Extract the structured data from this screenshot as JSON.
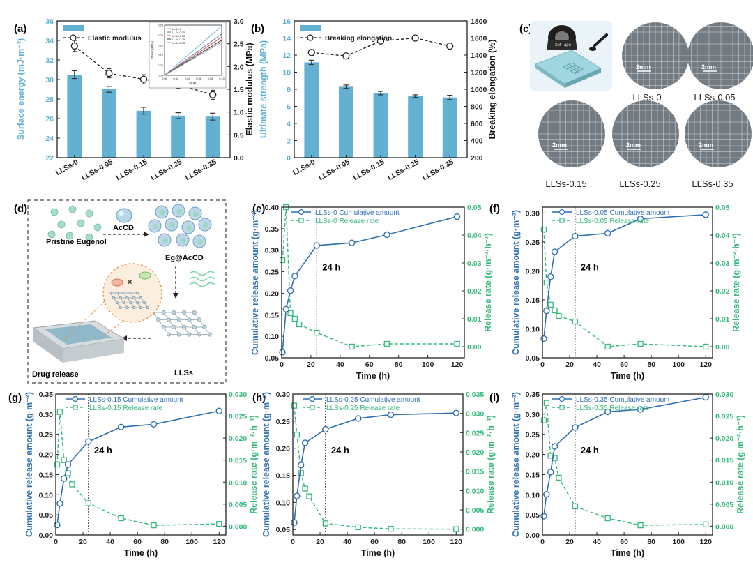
{
  "colors": {
    "bar": "#62b1d3",
    "cum": "#2f6fb3",
    "rate": "#33b97a",
    "black": "#222222",
    "photo": "#727b82",
    "dash_box": "#444444"
  },
  "panels": {
    "a": {
      "label": "(a)"
    },
    "b": {
      "label": "(b)"
    },
    "c": {
      "label": "(c)"
    },
    "d": {
      "label": "(d)"
    },
    "e": {
      "label": "(e)"
    },
    "f": {
      "label": "(f)"
    },
    "g": {
      "label": "(g)"
    },
    "h": {
      "label": "(h)"
    },
    "i": {
      "label": "(i)"
    }
  },
  "photos": {
    "labels": [
      "LLSs-0",
      "LLSs-0.05",
      "LLSs-0.15",
      "LLSs-0.25",
      "LLSs-0.35"
    ],
    "scale_text": "2mm",
    "tape_text": "3M Tape"
  },
  "schematic": {
    "pristine": "Pristine Eugenol",
    "acd": "AcCD",
    "complex": "Eg@AcCD",
    "llss": "LLSs",
    "release": "Drug release",
    "cross": "×"
  },
  "chart_data": [
    {
      "id": "a",
      "type": "bar",
      "categories": [
        "LLSs-0",
        "LLSs-0.05",
        "LLSs-0.15",
        "LLSs-0.25",
        "LLSs-0.35"
      ],
      "series": [
        {
          "name": "Surface energy",
          "kind": "bar",
          "axis": "left",
          "values": [
            30.5,
            29.0,
            26.8,
            26.3,
            26.2
          ],
          "errors": [
            0.4,
            0.3,
            0.35,
            0.3,
            0.35
          ]
        },
        {
          "name": "Elastic modulus",
          "kind": "line",
          "axis": "right",
          "values": [
            2.45,
            1.85,
            1.72,
            1.6,
            1.38
          ],
          "errors": [
            0.12,
            0.1,
            0.1,
            0.08,
            0.1
          ]
        }
      ],
      "ylabel": "Surface energy (mJ·m⁻²)",
      "ylim": [
        22,
        36
      ],
      "yticks": [
        22,
        24,
        26,
        28,
        30,
        32,
        34,
        36
      ],
      "y2label": "Elastic modulus (MPa)",
      "y2lim": [
        0,
        3.0
      ],
      "y2ticks": [
        "0.0",
        "0.5",
        "1.0",
        "1.5",
        "2.0",
        "2.5",
        "3.0"
      ],
      "legend": "top-left",
      "inset": {
        "type": "line",
        "xlabel": "Strain",
        "ylabel": "Stress (MPa)",
        "xticks": [
          "0.00",
          "0.02",
          "0.04",
          "0.06",
          "0.08",
          "0.10"
        ],
        "yticks": [
          "0.00",
          "0.05",
          "0.10",
          "0.15",
          "0.20",
          "0.25"
        ],
        "xlim": [
          0,
          0.1
        ],
        "ylim": [
          0,
          0.25
        ],
        "series": [
          {
            "name": "LLSs-0",
            "x": [
              0,
              0.1
            ],
            "y": [
              0,
              0.245
            ],
            "color": "#6fb7d8"
          },
          {
            "name": "LLSs-0.05",
            "x": [
              0,
              0.1
            ],
            "y": [
              0,
              0.205
            ],
            "color": "#6a7fb0"
          },
          {
            "name": "LLSs-0.15",
            "x": [
              0,
              0.1
            ],
            "y": [
              0,
              0.19
            ],
            "color": "#c65a4f"
          },
          {
            "name": "LLSs-0.25",
            "x": [
              0,
              0.1
            ],
            "y": [
              0,
              0.175
            ],
            "color": "#3a3a3a"
          },
          {
            "name": "LLSs-0.35",
            "x": [
              0,
              0.1
            ],
            "y": [
              0,
              0.165
            ],
            "color": "#a0a0a0"
          }
        ]
      }
    },
    {
      "id": "b",
      "type": "bar",
      "categories": [
        "LLSs-0",
        "LLSs-0.05",
        "LLSs-0.15",
        "LLSs-0.25",
        "LLSs-0.35"
      ],
      "series": [
        {
          "name": "Ultimate strength",
          "kind": "bar",
          "axis": "left",
          "values": [
            11.15,
            8.3,
            7.55,
            7.2,
            7.05
          ],
          "errors": [
            0.25,
            0.2,
            0.2,
            0.15,
            0.25
          ]
        },
        {
          "name": "Breaking elongation",
          "kind": "line",
          "axis": "right",
          "values": [
            1430,
            1390,
            1565,
            1600,
            1505
          ],
          "errors": [
            35,
            20,
            20,
            30,
            30
          ]
        }
      ],
      "ylabel": "Ultimate strength (MPa)",
      "ylim": [
        0,
        16
      ],
      "yticks": [
        0,
        2,
        4,
        6,
        8,
        10,
        12,
        14,
        16
      ],
      "y2label": "Breaking elongation (%)",
      "y2lim": [
        200,
        1800
      ],
      "y2ticks": [
        200,
        400,
        600,
        800,
        1000,
        1200,
        1400,
        1600,
        1800
      ],
      "legend": "top-left"
    },
    {
      "id": "e",
      "type": "line",
      "x": [
        0.5,
        3,
        6,
        9,
        12,
        24,
        48,
        72,
        120
      ],
      "series": [
        {
          "name": "LLSs-0 Cumulative amount",
          "axis": "left",
          "y": [
            0.063,
            0.163,
            0.206,
            0.24,
            null,
            0.311,
            0.317,
            0.336,
            0.378
          ]
        },
        {
          "name": "LLSs-0 Release rate",
          "axis": "right",
          "y": [
            0.031,
            0.05,
            0.012,
            0.01,
            0.008,
            0.005,
            0.0,
            0.001,
            0.001
          ]
        }
      ],
      "xlabel": "Time (h)",
      "xlim": [
        0,
        125
      ],
      "xticks": [
        0,
        20,
        40,
        60,
        80,
        100,
        120
      ],
      "ylabel": "Cumulative release amount (g·m⁻²)",
      "ylim": [
        0.05,
        0.4
      ],
      "yticks": [
        "0.05",
        "0.10",
        "0.15",
        "0.20",
        "0.25",
        "0.30",
        "0.35",
        "0.40"
      ],
      "y2label": "Release rate (g·m⁻²·h⁻¹)",
      "y2lim": [
        -0.004,
        0.05
      ],
      "y2ticks": [
        "0.00",
        "0.01",
        "0.02",
        "0.03",
        "0.04",
        "0.05"
      ],
      "vline": 24,
      "annotation": "24 h",
      "legend": "top-left"
    },
    {
      "id": "f",
      "type": "line",
      "x": [
        1,
        3,
        6,
        9,
        12,
        24,
        48,
        72,
        120
      ],
      "series": [
        {
          "name": "LLSs-0.05 Cumulative amount",
          "axis": "left",
          "y": [
            0.083,
            0.131,
            0.19,
            0.233,
            null,
            0.26,
            0.265,
            0.29,
            0.297
          ]
        },
        {
          "name": "LLSs-0.05 Release rate",
          "axis": "right",
          "y": [
            0.042,
            0.023,
            0.015,
            0.013,
            0.011,
            0.009,
            0.0,
            0.001,
            0.0
          ]
        }
      ],
      "xlabel": "Time (h)",
      "xlim": [
        0,
        125
      ],
      "xticks": [
        0,
        20,
        40,
        60,
        80,
        100,
        120
      ],
      "ylabel": "Cumulative release amount (g·m⁻²)",
      "ylim": [
        0.05,
        0.31
      ],
      "yticks": [
        "0.05",
        "0.10",
        "0.15",
        "0.20",
        "0.25",
        "0.30"
      ],
      "y2label": "Release rate (g·m⁻²·h⁻¹)",
      "y2lim": [
        -0.004,
        0.05
      ],
      "y2ticks": [
        "0.00",
        "0.01",
        "0.02",
        "0.03",
        "0.04",
        "0.05"
      ],
      "vline": 24,
      "annotation": "24 h",
      "legend": "top-left"
    },
    {
      "id": "g",
      "type": "line",
      "x": [
        1,
        3,
        6,
        9,
        12,
        24,
        48,
        72,
        120
      ],
      "series": [
        {
          "name": "LLSs-0.15 Cumulative amount",
          "axis": "left",
          "y": [
            0.025,
            0.078,
            0.14,
            0.175,
            null,
            0.232,
            0.268,
            0.275,
            0.308
          ]
        },
        {
          "name": "LLSs-0.15 Release rate",
          "axis": "right",
          "y": [
            0.014,
            0.026,
            0.015,
            0.012,
            0.0095,
            0.0052,
            0.0018,
            0.0002,
            0.0005
          ]
        }
      ],
      "xlabel": "Time (h)",
      "xlim": [
        0,
        125
      ],
      "xticks": [
        0,
        20,
        40,
        60,
        80,
        100,
        120
      ],
      "ylabel": "Cumulative release amount (g·m⁻²)",
      "ylim": [
        0,
        0.35
      ],
      "yticks": [
        "0.00",
        "0.05",
        "0.10",
        "0.15",
        "0.20",
        "0.25",
        "0.30",
        "0.35"
      ],
      "y2label": "Release rate (g·m⁻²·h⁻¹)",
      "y2lim": [
        -0.002,
        0.03
      ],
      "y2ticks": [
        "0.000",
        "0.005",
        "0.010",
        "0.015",
        "0.020",
        "0.025",
        "0.030"
      ],
      "vline": 24,
      "annotation": "24 h",
      "legend": "top-left"
    },
    {
      "id": "h",
      "type": "line",
      "x": [
        1,
        3,
        6,
        9,
        12,
        24,
        48,
        72,
        120
      ],
      "series": [
        {
          "name": "LLSs-0.25 Cumulative amount",
          "axis": "left",
          "y": [
            0.063,
            0.112,
            0.169,
            0.21,
            null,
            0.235,
            0.255,
            0.262,
            0.265
          ]
        },
        {
          "name": "LLSs-0.25 Release rate",
          "axis": "right",
          "y": [
            0.032,
            0.0245,
            0.0145,
            0.0105,
            0.0085,
            0.0015,
            0.0005,
            0.0001,
            0.0
          ]
        }
      ],
      "xlabel": "Time (h)",
      "xlim": [
        0,
        125
      ],
      "xticks": [
        0,
        20,
        40,
        60,
        80,
        100,
        120
      ],
      "ylabel": "Cumulative release amount (g·m⁻²)",
      "ylim": [
        0.04,
        0.3
      ],
      "yticks": [
        "0.05",
        "0.10",
        "0.15",
        "0.20",
        "0.25",
        "0.30"
      ],
      "y2label": "Release rate (g·m⁻²·h⁻¹)",
      "y2lim": [
        -0.0015,
        0.035
      ],
      "y2ticks": [
        "0.000",
        "0.005",
        "0.010",
        "0.015",
        "0.020",
        "0.025",
        "0.030",
        "0.035"
      ],
      "vline": 24,
      "annotation": "24 h",
      "legend": "top-left"
    },
    {
      "id": "i",
      "type": "line",
      "x": [
        1,
        3,
        6,
        9,
        12,
        24,
        48,
        72,
        120
      ],
      "series": [
        {
          "name": "LLSs-0.35 Cumulative amount",
          "axis": "left",
          "y": [
            0.047,
            0.101,
            0.156,
            0.22,
            null,
            0.267,
            0.306,
            0.312,
            0.342
          ]
        },
        {
          "name": "LLSs-0.35 Release rate",
          "axis": "right",
          "y": [
            0.024,
            0.028,
            0.016,
            0.0155,
            0.011,
            0.0045,
            0.0018,
            0.0002,
            0.0004
          ]
        }
      ],
      "xlabel": "Time (h)",
      "xlim": [
        0,
        125
      ],
      "xticks": [
        0,
        20,
        40,
        60,
        80,
        100,
        120
      ],
      "ylabel": "Cumulative release amount (g·m⁻²)",
      "ylim": [
        0,
        0.35
      ],
      "yticks": [
        "0.00",
        "0.05",
        "0.10",
        "0.15",
        "0.20",
        "0.25",
        "0.30",
        "0.35"
      ],
      "y2label": "Release rate (g·m⁻²·h⁻¹)",
      "y2lim": [
        -0.002,
        0.03
      ],
      "y2ticks": [
        "0.000",
        "0.005",
        "0.010",
        "0.015",
        "0.020",
        "0.025",
        "0.030"
      ],
      "vline": 24,
      "annotation": "24 h",
      "legend": "top-left"
    }
  ]
}
